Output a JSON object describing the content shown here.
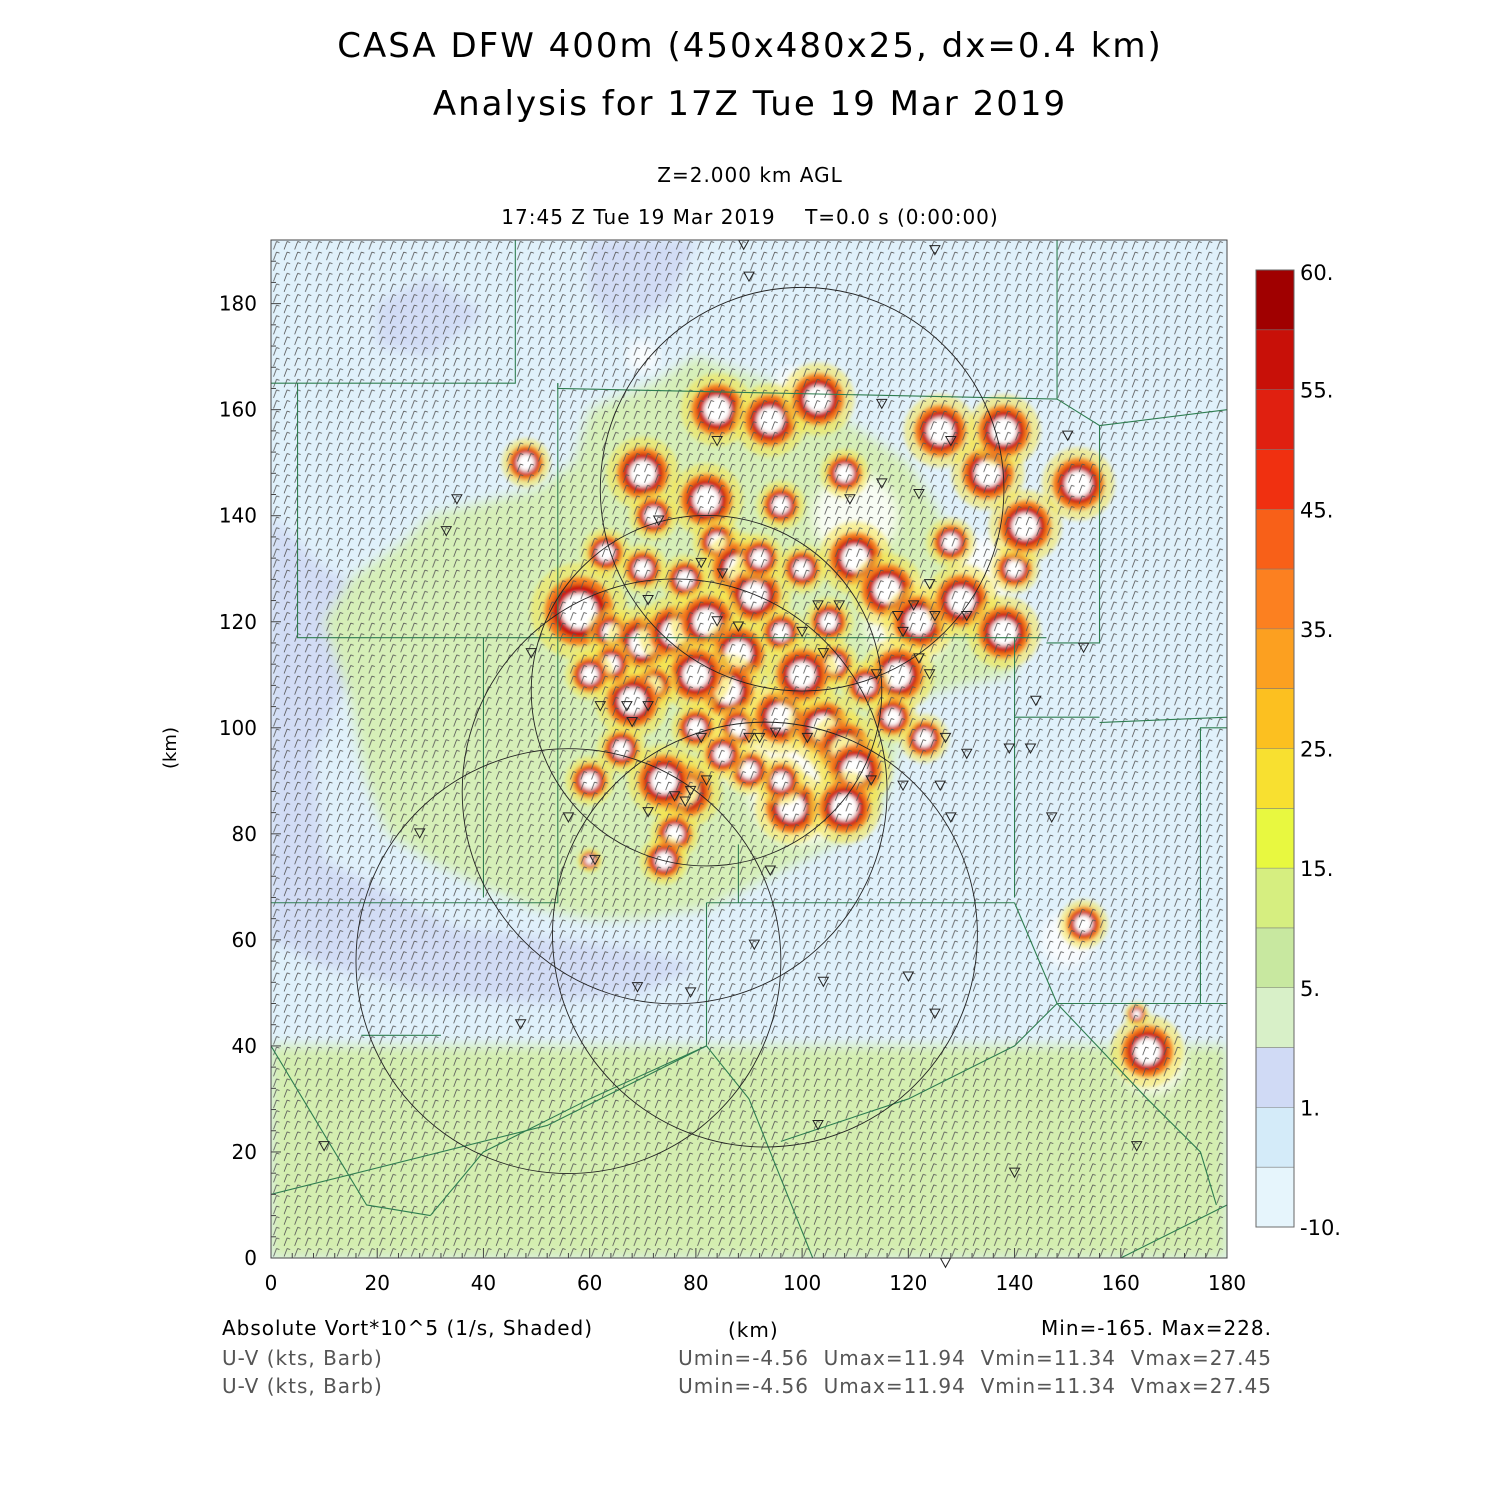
{
  "title_line1": "CASA DFW 400m (450x480x25, dx=0.4 km)",
  "title_line2": "Analysis for 17Z Tue 19 Mar 2019",
  "level_label": "Z=2.000 km AGL",
  "time_label": "17:45 Z Tue 19 Mar 2019    T=0.0 s (0:00:00)",
  "footer": {
    "field1": "Absolute Vort*10^5 (1/s, Shaded)",
    "x_unit": "(km)",
    "minmax": "Min=-165. Max=228.",
    "field2": "U-V (kts, Barb)",
    "field3": "U-V (kts, Barb)",
    "uv_stats": "Umin=-4.56  Umax=11.94  Vmin=11.34  Vmax=27.45",
    "uv_stats2": "Umin=-4.56  Umax=11.94  Vmin=11.34  Vmax=27.45"
  },
  "chart_data": {
    "type": "heatmap",
    "title": "CASA DFW 400m (450x480x25, dx=0.4 km)",
    "subtitle": "Analysis for 17Z Tue 19 Mar 2019",
    "xlabel": "(km)",
    "ylabel": "(km)",
    "xlim": [
      0,
      180
    ],
    "ylim": [
      0,
      192
    ],
    "x_ticks": [
      "0",
      "20",
      "40",
      "60",
      "80",
      "100",
      "120",
      "140",
      "160",
      "180"
    ],
    "y_ticks": [
      "0",
      "20",
      "40",
      "60",
      "80",
      "100",
      "120",
      "140",
      "160",
      "180"
    ],
    "colorbar": {
      "levels": [
        "-10.",
        "",
        "1.",
        "",
        "5.",
        "",
        "15.",
        "",
        "25.",
        "",
        "35.",
        "",
        "45.",
        "",
        "55.",
        "60."
      ],
      "colors": [
        "#e6f5fc",
        "#d4ebf9",
        "#d0daf5",
        "#d8f0c8",
        "#c8e8a0",
        "#d6ee80",
        "#e8f840",
        "#f8e030",
        "#fcc020",
        "#fca020",
        "#fc8020",
        "#f86018",
        "#f03010",
        "#e02010",
        "#c81008",
        "#a00000"
      ]
    },
    "blobs": [
      [
        48,
        150,
        2
      ],
      [
        70,
        148,
        3
      ],
      [
        72,
        140,
        2
      ],
      [
        63,
        133,
        2
      ],
      [
        82,
        143,
        3
      ],
      [
        84,
        135,
        2
      ],
      [
        88,
        130,
        3
      ],
      [
        91,
        125,
        3
      ],
      [
        92,
        132,
        2
      ],
      [
        78,
        128,
        2
      ],
      [
        70,
        130,
        2
      ],
      [
        58,
        122,
        4
      ],
      [
        64,
        118,
        2
      ],
      [
        70,
        116,
        3
      ],
      [
        76,
        118,
        3
      ],
      [
        82,
        120,
        3
      ],
      [
        88,
        114,
        3
      ],
      [
        86,
        107,
        3
      ],
      [
        80,
        110,
        3
      ],
      [
        72,
        108,
        2
      ],
      [
        68,
        105,
        3
      ],
      [
        64,
        112,
        2
      ],
      [
        60,
        110,
        2
      ],
      [
        80,
        100,
        2
      ],
      [
        88,
        100,
        2
      ],
      [
        96,
        102,
        3
      ],
      [
        104,
        100,
        3
      ],
      [
        108,
        96,
        3
      ],
      [
        110,
        92,
        3
      ],
      [
        98,
        85,
        3
      ],
      [
        108,
        85,
        3
      ],
      [
        78,
        88,
        3
      ],
      [
        74,
        90,
        3
      ],
      [
        76,
        80,
        2
      ],
      [
        66,
        96,
        2
      ],
      [
        60,
        90,
        2
      ],
      [
        84,
        160,
        3
      ],
      [
        94,
        158,
        3
      ],
      [
        103,
        162,
        3
      ],
      [
        108,
        148,
        2
      ],
      [
        96,
        142,
        2
      ],
      [
        100,
        130,
        2
      ],
      [
        110,
        132,
        3
      ],
      [
        116,
        126,
        3
      ],
      [
        122,
        120,
        3
      ],
      [
        130,
        124,
        3
      ],
      [
        138,
        118,
        3
      ],
      [
        128,
        135,
        2
      ],
      [
        140,
        130,
        2
      ],
      [
        142,
        138,
        3
      ],
      [
        135,
        148,
        3
      ],
      [
        126,
        156,
        3
      ],
      [
        138,
        156,
        3
      ],
      [
        152,
        146,
        3
      ],
      [
        118,
        110,
        3
      ],
      [
        106,
        112,
        2
      ],
      [
        112,
        108,
        2
      ],
      [
        96,
        118,
        2
      ],
      [
        100,
        110,
        3
      ],
      [
        105,
        120,
        2
      ],
      [
        74,
        75,
        2
      ],
      [
        60,
        75,
        1
      ],
      [
        96,
        90,
        2
      ],
      [
        90,
        92,
        2
      ],
      [
        85,
        95,
        2
      ],
      [
        123,
        98,
        2
      ],
      [
        117,
        102,
        2
      ],
      [
        153,
        63,
        2
      ],
      [
        165,
        39,
        3
      ],
      [
        163,
        46,
        1
      ]
    ],
    "light_patches": [
      [
        70,
        170,
        3
      ],
      [
        98,
        165,
        3
      ],
      [
        92,
        98,
        10
      ],
      [
        100,
        88,
        10
      ],
      [
        120,
        120,
        8
      ],
      [
        135,
        130,
        6
      ],
      [
        110,
        140,
        8
      ],
      [
        150,
        60,
        5
      ],
      [
        166,
        37,
        6
      ],
      [
        84,
        110,
        6
      ]
    ],
    "green_regions": [
      [
        [
          30,
          140
        ],
        [
          50,
          145
        ],
        [
          57,
          150
        ],
        [
          60,
          160
        ],
        [
          72,
          165
        ],
        [
          80,
          170
        ],
        [
          95,
          165
        ],
        [
          105,
          160
        ],
        [
          120,
          150
        ],
        [
          125,
          142
        ],
        [
          130,
          132
        ],
        [
          135,
          128
        ],
        [
          140,
          120
        ],
        [
          140,
          110
        ],
        [
          130,
          108
        ],
        [
          120,
          105
        ],
        [
          118,
          96
        ],
        [
          115,
          85
        ],
        [
          110,
          80
        ],
        [
          100,
          75
        ],
        [
          90,
          70
        ],
        [
          82,
          66
        ],
        [
          75,
          65
        ],
        [
          70,
          64
        ],
        [
          60,
          64
        ],
        [
          50,
          66
        ],
        [
          40,
          70
        ],
        [
          30,
          75
        ],
        [
          22,
          80
        ],
        [
          18,
          90
        ],
        [
          15,
          105
        ],
        [
          10,
          120
        ],
        [
          15,
          128
        ],
        [
          25,
          135
        ]
      ]
    ],
    "blue_regions": [
      [
        [
          60,
          192
        ],
        [
          80,
          192
        ],
        [
          75,
          180
        ],
        [
          65,
          175
        ],
        [
          60,
          182
        ]
      ],
      [
        [
          0,
          140
        ],
        [
          10,
          130
        ],
        [
          20,
          125
        ],
        [
          15,
          110
        ],
        [
          8,
          95
        ],
        [
          10,
          75
        ],
        [
          20,
          70
        ],
        [
          35,
          62
        ],
        [
          55,
          60
        ],
        [
          70,
          58
        ],
        [
          80,
          55
        ],
        [
          70,
          50
        ],
        [
          50,
          48
        ],
        [
          30,
          50
        ],
        [
          10,
          55
        ],
        [
          0,
          60
        ]
      ],
      [
        [
          20,
          180
        ],
        [
          30,
          185
        ],
        [
          40,
          178
        ],
        [
          30,
          170
        ],
        [
          20,
          172
        ]
      ]
    ],
    "south_band_top": 40,
    "range_rings": [
      {
        "cx": 100,
        "cy": 145,
        "r": 38
      },
      {
        "cx": 82,
        "cy": 107,
        "r": 33
      },
      {
        "cx": 93,
        "cy": 61,
        "r": 40
      },
      {
        "cx": 56,
        "cy": 56,
        "r": 40
      },
      {
        "cx": 76,
        "cy": 88,
        "r": 40
      }
    ],
    "county_lines": [
      [
        [
          0,
          165
        ],
        [
          46,
          165
        ],
        [
          46,
          172
        ],
        [
          46,
          192
        ]
      ],
      [
        [
          5,
          165
        ],
        [
          5,
          117
        ],
        [
          54,
          117
        ],
        [
          54,
          165
        ]
      ],
      [
        [
          54,
          165
        ],
        [
          54,
          164
        ],
        [
          148,
          162
        ],
        [
          148,
          192
        ]
      ],
      [
        [
          54,
          117
        ],
        [
          54,
          67
        ],
        [
          0,
          67
        ]
      ],
      [
        [
          40,
          117
        ],
        [
          40,
          68
        ]
      ],
      [
        [
          54,
          117
        ],
        [
          146,
          117
        ]
      ],
      [
        [
          148,
          162
        ],
        [
          156,
          157
        ],
        [
          156,
          116
        ],
        [
          146,
          116
        ]
      ],
      [
        [
          156,
          157
        ],
        [
          180,
          160
        ]
      ],
      [
        [
          156,
          101
        ],
        [
          180,
          102
        ]
      ],
      [
        [
          140,
          117
        ],
        [
          140,
          68
        ]
      ],
      [
        [
          140,
          102
        ],
        [
          156,
          102
        ]
      ],
      [
        [
          82,
          67
        ],
        [
          140,
          67
        ]
      ],
      [
        [
          82,
          67
        ],
        [
          82,
          40
        ]
      ],
      [
        [
          88,
          78
        ],
        [
          88,
          67
        ]
      ],
      [
        [
          82,
          40
        ],
        [
          52,
          25
        ],
        [
          0,
          12
        ]
      ],
      [
        [
          82,
          40
        ],
        [
          90,
          30
        ],
        [
          102,
          0
        ]
      ],
      [
        [
          148,
          48
        ],
        [
          180,
          48
        ]
      ],
      [
        [
          175,
          48
        ],
        [
          175,
          100
        ],
        [
          180,
          100
        ]
      ],
      [
        [
          140,
          67
        ],
        [
          148,
          48
        ],
        [
          140,
          40
        ],
        [
          120,
          30
        ],
        [
          96,
          22
        ]
      ],
      [
        [
          0,
          40
        ],
        [
          18,
          10
        ],
        [
          30,
          8
        ]
      ],
      [
        [
          82,
          40
        ],
        [
          60,
          30
        ],
        [
          40,
          20
        ],
        [
          30,
          8
        ]
      ],
      [
        [
          17,
          42
        ],
        [
          32,
          42
        ]
      ],
      [
        [
          160,
          0
        ],
        [
          180,
          10
        ]
      ],
      [
        [
          148,
          48
        ],
        [
          165,
          30
        ],
        [
          175,
          20
        ],
        [
          178,
          10
        ]
      ]
    ],
    "stations": [
      [
        89,
        191
      ],
      [
        125,
        190
      ],
      [
        90,
        185
      ],
      [
        115,
        161
      ],
      [
        84,
        154
      ],
      [
        128,
        154
      ],
      [
        150,
        155
      ],
      [
        35,
        143
      ],
      [
        33,
        137
      ],
      [
        73,
        139
      ],
      [
        109,
        143
      ],
      [
        115,
        146
      ],
      [
        122,
        144
      ],
      [
        81,
        131
      ],
      [
        71,
        124
      ],
      [
        85,
        129
      ],
      [
        124,
        127
      ],
      [
        121,
        123
      ],
      [
        125,
        121
      ],
      [
        118,
        121
      ],
      [
        119,
        118
      ],
      [
        131,
        121
      ],
      [
        107,
        123
      ],
      [
        103,
        123
      ],
      [
        100,
        118
      ],
      [
        84,
        120
      ],
      [
        88,
        119
      ],
      [
        49,
        114
      ],
      [
        104,
        114
      ],
      [
        114,
        110
      ],
      [
        122,
        113
      ],
      [
        124,
        110
      ],
      [
        153,
        115
      ],
      [
        144,
        105
      ],
      [
        67,
        104
      ],
      [
        68,
        101
      ],
      [
        71,
        104
      ],
      [
        62,
        104
      ],
      [
        81,
        98
      ],
      [
        90,
        98
      ],
      [
        92,
        98
      ],
      [
        95,
        99
      ],
      [
        101,
        98
      ],
      [
        113,
        90
      ],
      [
        127,
        98
      ],
      [
        131,
        95
      ],
      [
        119,
        89
      ],
      [
        126,
        89
      ],
      [
        128,
        83
      ],
      [
        139,
        96
      ],
      [
        143,
        96
      ],
      [
        147,
        83
      ],
      [
        28,
        80
      ],
      [
        56,
        83
      ],
      [
        61,
        75
      ],
      [
        94,
        73
      ],
      [
        76,
        87
      ],
      [
        79,
        88
      ],
      [
        82,
        90
      ],
      [
        78,
        86
      ],
      [
        71,
        84
      ],
      [
        91,
        59
      ],
      [
        69,
        51
      ],
      [
        79,
        50
      ],
      [
        47,
        44
      ],
      [
        104,
        52
      ],
      [
        120,
        53
      ],
      [
        125,
        46
      ],
      [
        10,
        21
      ],
      [
        103,
        25
      ],
      [
        140,
        16
      ],
      [
        163,
        21
      ],
      [
        127,
        -1
      ]
    ]
  }
}
